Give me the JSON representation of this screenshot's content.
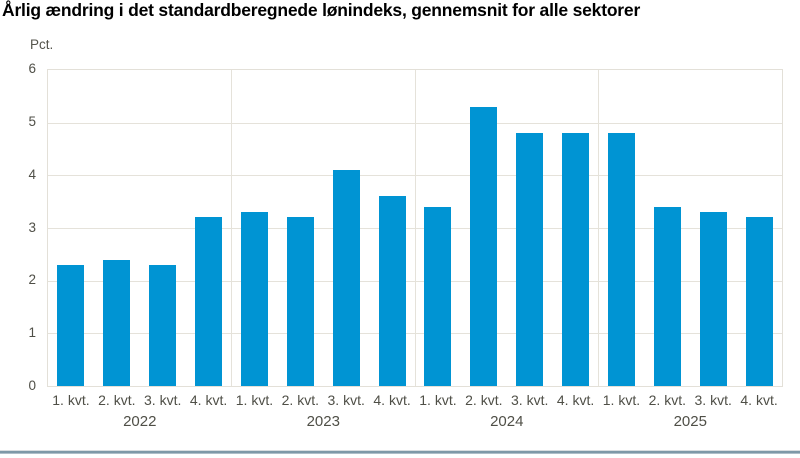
{
  "chart_data": {
    "type": "bar",
    "title": "Årlig ændring i det standardberegnede lønindeks, gennemsnit for alle sektorer",
    "ylabel": "Pct.",
    "xlabel": "",
    "ylim": [
      0,
      6
    ],
    "y_ticks": [
      0,
      1,
      2,
      3,
      4,
      5,
      6
    ],
    "grid": true,
    "legend_position": "none",
    "quarter_labels": [
      "1. kvt.",
      "2. kvt.",
      "3. kvt.",
      "4. kvt."
    ],
    "groups": [
      {
        "year": "2022",
        "values": [
          2.3,
          2.4,
          2.3,
          3.2
        ]
      },
      {
        "year": "2023",
        "values": [
          3.3,
          3.2,
          4.1,
          3.6
        ]
      },
      {
        "year": "2024",
        "values": [
          3.4,
          5.3,
          4.8,
          4.8
        ]
      },
      {
        "year": "2025",
        "values": [
          4.8,
          3.4,
          3.3,
          3.2
        ]
      }
    ],
    "bar_color": "#0094d3",
    "gridline_color": "#e5e2da"
  }
}
